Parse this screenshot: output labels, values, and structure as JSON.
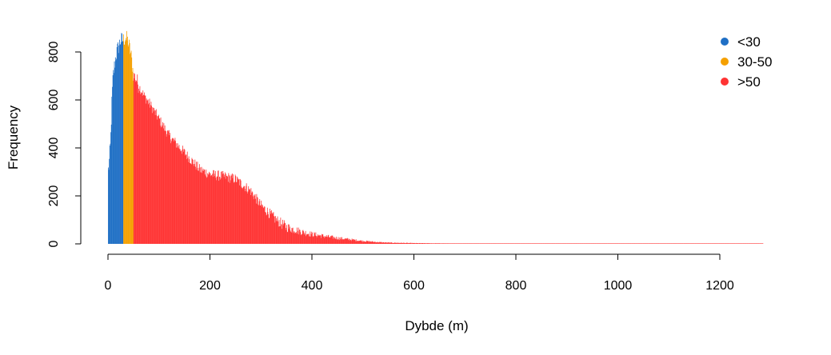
{
  "chart_data": {
    "type": "bar",
    "xlabel": "Dybde (m)",
    "ylabel": "Frequency",
    "xlim": [
      0,
      1300
    ],
    "ylim": [
      0,
      900
    ],
    "x_ticks": [
      0,
      200,
      400,
      600,
      800,
      1000,
      1200
    ],
    "y_ticks": [
      0,
      200,
      400,
      600,
      800
    ],
    "bin_width_m": 1,
    "grid": false,
    "legend_position": "top-right",
    "legend": [
      {
        "label": "<30",
        "color": "#1F6FC5"
      },
      {
        "label": "30-50",
        "color": "#F5A000"
      },
      {
        "label": ">50",
        "color": "#FF3333"
      }
    ],
    "series": [
      {
        "name": "<30",
        "color": "#1F6FC5",
        "range": [
          0,
          30
        ]
      },
      {
        "name": "30-50",
        "color": "#F5A000",
        "range": [
          30,
          50
        ]
      },
      {
        "name": ">50",
        "color": "#FF3333",
        "range": [
          50,
          1285
        ]
      }
    ],
    "profile": {
      "depth": [
        0,
        2,
        5,
        8,
        10,
        15,
        20,
        25,
        30,
        35,
        40,
        45,
        50,
        55,
        60,
        70,
        80,
        100,
        120,
        150,
        180,
        200,
        230,
        250,
        280,
        300,
        330,
        350,
        380,
        400,
        430,
        450,
        500,
        530,
        550,
        600,
        650,
        700,
        1285
      ],
      "frequency": [
        300,
        330,
        420,
        620,
        700,
        780,
        820,
        850,
        850,
        860,
        840,
        790,
        700,
        690,
        660,
        620,
        590,
        520,
        450,
        380,
        310,
        290,
        280,
        270,
        220,
        160,
        100,
        70,
        50,
        40,
        30,
        24,
        12,
        7,
        5,
        3,
        2,
        1,
        0
      ]
    }
  }
}
